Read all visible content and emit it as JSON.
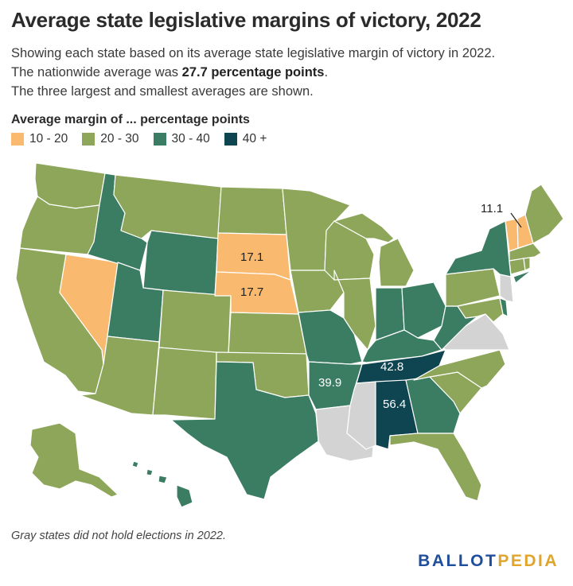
{
  "title": "Average state legislative margins of victory, 2022",
  "subtitle_lines": {
    "line1": "Showing each state based on its average state legislative margin of victory in 2022.",
    "line2_prefix": "The nationwide average was ",
    "line2_bold": "27.7 percentage points",
    "line2_suffix": ".",
    "line3": "The three largest and smallest averages are shown."
  },
  "legend": {
    "title": "Average margin of ... percentage points",
    "items": [
      {
        "label": "10 - 20",
        "color": "#f9b96e"
      },
      {
        "label": "20 - 30",
        "color": "#8da65a"
      },
      {
        "label": "30 - 40",
        "color": "#3b7d62"
      },
      {
        "label": "40 +",
        "color": "#0f4550"
      }
    ]
  },
  "colors": {
    "range_10_20": "#f9b96e",
    "range_20_30": "#8da65a",
    "range_30_40": "#3b7d62",
    "range_40_plus": "#0f4550",
    "no_election": "#d3d3d3"
  },
  "map_labels": {
    "south_dakota": "17.1",
    "nebraska": "17.7",
    "vermont": "11.1",
    "tennessee": "42.8",
    "alabama": "56.4",
    "arkansas": "39.9"
  },
  "footnote": {
    "emph": "Gray",
    "rest": " states did not hold elections in 2022."
  },
  "brand": {
    "part1": "BALLOT",
    "part2": "PEDIA"
  }
}
